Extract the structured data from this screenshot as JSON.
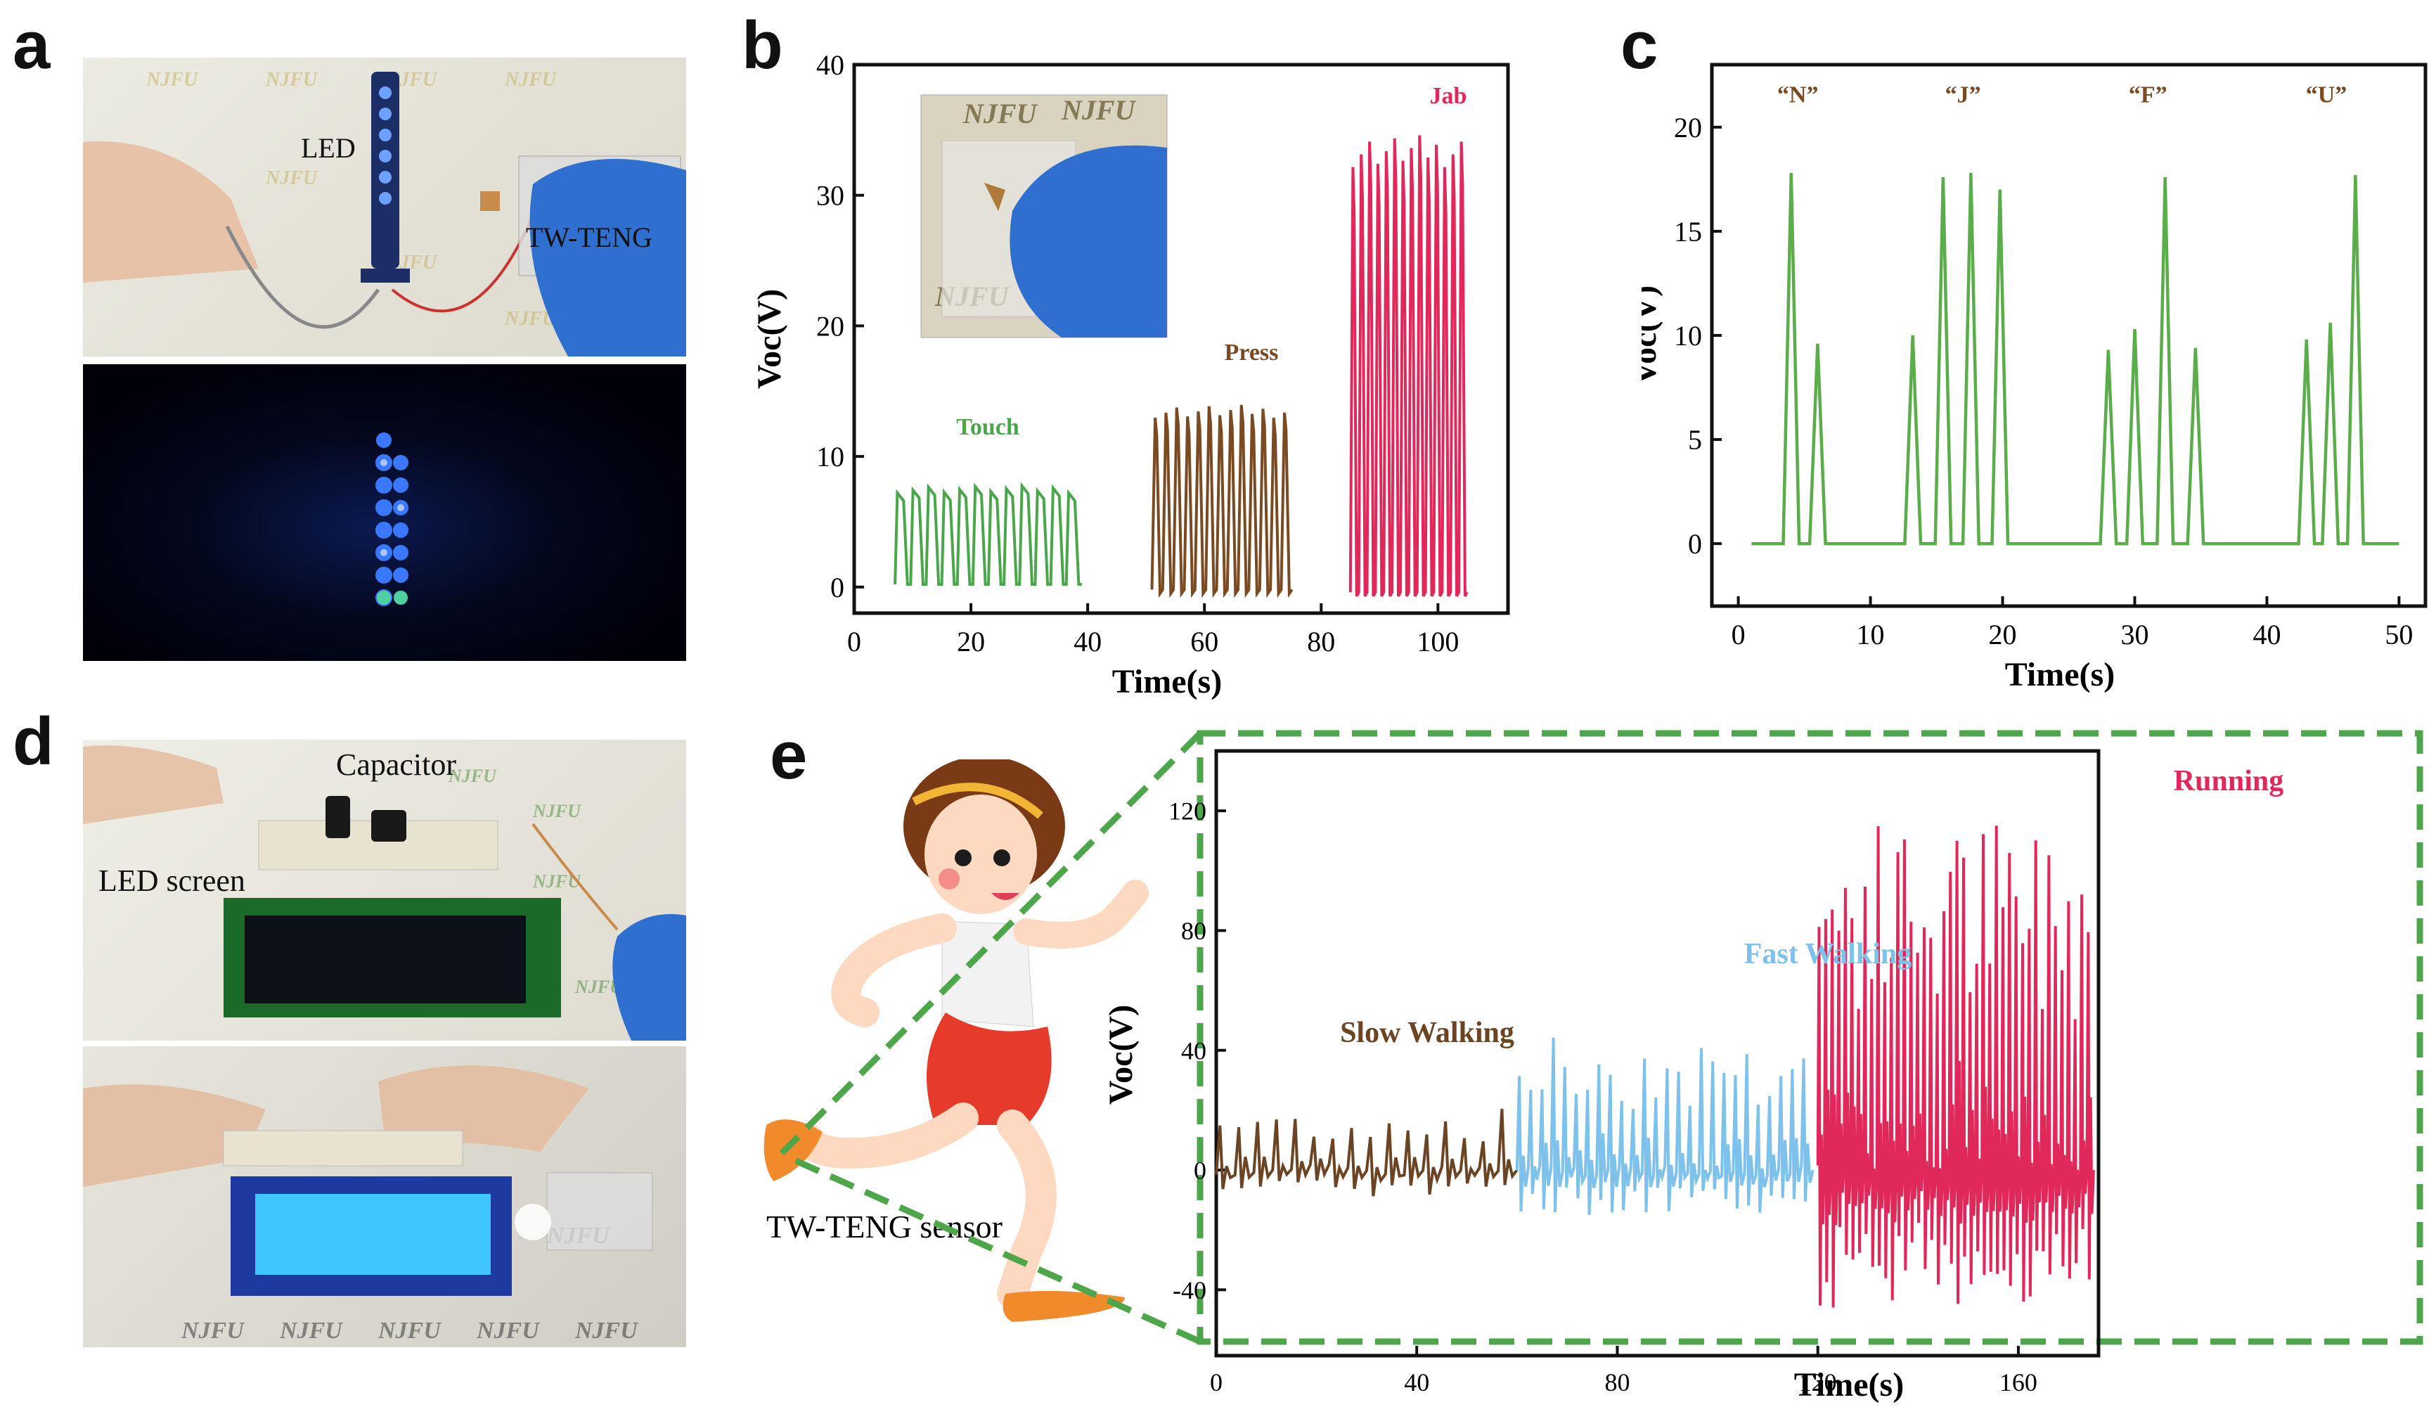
{
  "panels": {
    "a": "a",
    "b": "b",
    "c": "c",
    "d": "d",
    "e": "e"
  },
  "photos": {
    "a_top": {
      "led_label": "LED",
      "teng_label": "TW-TENG",
      "watermark": "NJFU"
    },
    "b_inset": {
      "watermark": "NJFU"
    },
    "d_top": {
      "capacitor_label": "Capacitor",
      "screen_label": "LED screen",
      "watermark": "NJFU"
    },
    "d_bottom": {
      "watermark": "NJFU"
    },
    "e": {
      "sensor_label": "TW-TENG sensor"
    }
  },
  "colors": {
    "touch": "#4aa64a",
    "press": "#7a4a22",
    "jab": "#e0285a",
    "c_line": "#5aad4a",
    "slow": "#6b4423",
    "fast": "#7ec2ec",
    "running": "#e0285a",
    "dash": "#4ea64a"
  },
  "chart_data": [
    {
      "id": "b",
      "type": "line",
      "xlabel": "Time(s)",
      "ylabel": "Voc(V)",
      "xlim": [
        0,
        112
      ],
      "ylim": [
        -2,
        40
      ],
      "xticks": [
        0,
        20,
        40,
        60,
        80,
        100
      ],
      "yticks": [
        0,
        10,
        20,
        30,
        40
      ],
      "series": [
        {
          "name": "Touch",
          "color": "#4aa64a",
          "t_start": 7,
          "t_end": 39,
          "n_peaks": 12,
          "peak": 7.5,
          "base": 0.2,
          "shape": "square"
        },
        {
          "name": "Press",
          "color": "#7a4a22",
          "t_start": 51,
          "t_end": 75,
          "n_peaks": 13,
          "peak": 13.5,
          "base": -0.2,
          "shape": "spike"
        },
        {
          "name": "Jab",
          "color": "#e0285a",
          "t_start": 85,
          "t_end": 105,
          "n_peaks": 14,
          "peak": 33.5,
          "base": -0.4,
          "shape": "spike"
        }
      ]
    },
    {
      "id": "c",
      "type": "line",
      "xlabel": "Time(s)",
      "ylabel": "Voc(V)",
      "xlim": [
        -2,
        52
      ],
      "ylim": [
        -3,
        23
      ],
      "xticks": [
        0,
        10,
        20,
        30,
        40,
        50
      ],
      "yticks": [
        0,
        5,
        10,
        15,
        20
      ],
      "annotations": [
        "“N”",
        "“J”",
        "“F”",
        "“U”"
      ],
      "annotation_x": [
        4.5,
        17,
        31,
        44.5
      ],
      "series": [
        {
          "name": "Voc",
          "color": "#5aad4a",
          "peaks": [
            [
              4,
              17.8
            ],
            [
              6,
              9.6
            ],
            [
              13.2,
              10
            ],
            [
              15.5,
              17.6
            ],
            [
              17.6,
              17.8
            ],
            [
              19.8,
              17
            ],
            [
              28,
              9.3
            ],
            [
              30,
              10.3
            ],
            [
              32.3,
              17.6
            ],
            [
              34.6,
              9.4
            ],
            [
              43,
              9.8
            ],
            [
              44.8,
              10.6
            ],
            [
              46.7,
              17.7
            ]
          ],
          "range": [
            1,
            50
          ]
        }
      ]
    },
    {
      "id": "e",
      "type": "line",
      "xlabel": "Time(s)",
      "ylabel": "Voc(V)",
      "xlim": [
        0,
        176
      ],
      "ylim": [
        -62,
        140
      ],
      "xticks": [
        0,
        40,
        80,
        120,
        160
      ],
      "yticks": [
        -40,
        0,
        40,
        80,
        120
      ],
      "series": [
        {
          "name": "Slow Walking",
          "color": "#6b4423",
          "t_start": 0,
          "t_end": 60,
          "n_peaks": 16,
          "peak": 20,
          "low": -8
        },
        {
          "name": "Fast Walking",
          "color": "#7ec2ec",
          "t_start": 60,
          "t_end": 119,
          "n_peaks": 26,
          "peak": 44,
          "low": -14
        },
        {
          "name": "Running",
          "color": "#e0285a",
          "t_start": 120,
          "t_end": 175,
          "n_peaks": 42,
          "peak": 112,
          "low": -42
        }
      ]
    }
  ]
}
